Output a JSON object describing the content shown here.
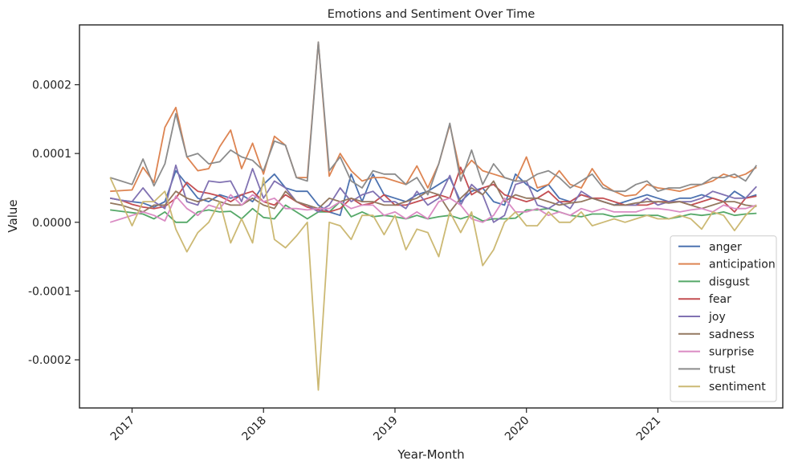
{
  "chart_data": {
    "type": "line",
    "title": "Emotions and Sentiment Over Time",
    "xlabel": "Year-Month",
    "ylabel": "Value",
    "x_tick_labels": [
      "2017",
      "2018",
      "2019",
      "2020",
      "2021"
    ],
    "y_tick_labels": [
      "-0.0002",
      "-0.0001",
      "0.0000",
      "0.0001",
      "0.0002"
    ],
    "y_ticks": [
      -0.0002,
      -0.0001,
      0,
      0.0001,
      0.0002
    ],
    "x_tick_positions": [
      2017,
      2018,
      2019,
      2020,
      2021
    ],
    "xlim": [
      2016.6,
      2021.95
    ],
    "ylim": [
      -0.00027,
      0.000287
    ],
    "grid": false,
    "legend_position": "lower-right",
    "x": [
      2016.833,
      2016.917,
      2017.0,
      2017.083,
      2017.167,
      2017.25,
      2017.333,
      2017.417,
      2017.5,
      2017.583,
      2017.667,
      2017.75,
      2017.833,
      2017.917,
      2018.0,
      2018.083,
      2018.167,
      2018.25,
      2018.333,
      2018.417,
      2018.5,
      2018.583,
      2018.667,
      2018.75,
      2018.833,
      2018.917,
      2019.0,
      2019.083,
      2019.167,
      2019.25,
      2019.333,
      2019.417,
      2019.5,
      2019.583,
      2019.667,
      2019.75,
      2019.833,
      2019.917,
      2020.0,
      2020.083,
      2020.167,
      2020.25,
      2020.333,
      2020.417,
      2020.5,
      2020.583,
      2020.667,
      2020.75,
      2020.833,
      2020.917,
      2021.0,
      2021.083,
      2021.167,
      2021.25,
      2021.333,
      2021.417,
      2021.5,
      2021.583,
      2021.667,
      2021.75
    ],
    "series": [
      {
        "name": "anger",
        "color": "#4c72b0",
        "values": [
          3.5e-05,
          3.2e-05,
          3e-05,
          2.8e-05,
          2.2e-05,
          3e-05,
          7.5e-05,
          5.5e-05,
          3.5e-05,
          3e-05,
          4e-05,
          3.5e-05,
          4e-05,
          3e-05,
          5.5e-05,
          7e-05,
          5e-05,
          4.5e-05,
          4.5e-05,
          2.5e-05,
          1.5e-05,
          1e-05,
          7e-05,
          3e-05,
          7e-05,
          4e-05,
          3.5e-05,
          3e-05,
          4e-05,
          4.5e-05,
          5.5e-05,
          6.5e-05,
          3e-05,
          4.5e-05,
          5e-05,
          3e-05,
          2.5e-05,
          7e-05,
          5.5e-05,
          4.5e-05,
          5.5e-05,
          3.5e-05,
          3e-05,
          4e-05,
          3.5e-05,
          3e-05,
          2.5e-05,
          3e-05,
          3.5e-05,
          4e-05,
          3.5e-05,
          3e-05,
          3.5e-05,
          3.5e-05,
          4e-05,
          3.5e-05,
          3e-05,
          4.5e-05,
          3.5e-05,
          4e-05
        ]
      },
      {
        "name": "anticipation",
        "color": "#dd8452",
        "values": [
          4.5e-05,
          4.6e-05,
          4.7e-05,
          8e-05,
          5.8e-05,
          0.000138,
          0.000167,
          9.5e-05,
          7.5e-05,
          7.8e-05,
          0.00011,
          0.000134,
          7.8e-05,
          0.000115,
          7e-05,
          0.000125,
          0.000112,
          6.5e-05,
          6.5e-05,
          0.000262,
          6.7e-05,
          0.0001,
          7.5e-05,
          6e-05,
          6.5e-05,
          6.5e-05,
          6e-05,
          5.5e-05,
          8.2e-05,
          5e-05,
          8.5e-05,
          0.000142,
          7e-05,
          9e-05,
          7.5e-05,
          7e-05,
          6.5e-05,
          6e-05,
          9.5e-05,
          5e-05,
          5.5e-05,
          7.5e-05,
          5.5e-05,
          5e-05,
          7.8e-05,
          5.5e-05,
          4.5e-05,
          3.8e-05,
          4e-05,
          5.5e-05,
          5e-05,
          4.8e-05,
          4.5e-05,
          5e-05,
          5.5e-05,
          6e-05,
          7e-05,
          6.5e-05,
          7e-05,
          8e-05
        ]
      },
      {
        "name": "disgust",
        "color": "#55a868",
        "values": [
          1.8e-05,
          1.6e-05,
          1.4e-05,
          1.2e-05,
          5e-06,
          1.5e-05,
          0.0,
          0.0,
          1.5e-05,
          1.8e-05,
          1.5e-05,
          1.6e-05,
          5e-06,
          2e-05,
          7e-06,
          5e-06,
          2.5e-05,
          1.5e-05,
          5e-06,
          1.5e-05,
          1.5e-05,
          3e-05,
          8e-06,
          1.5e-05,
          8e-06,
          1e-05,
          8e-06,
          5e-06,
          1e-05,
          5e-06,
          8e-06,
          1e-05,
          5e-06,
          1e-05,
          2e-06,
          5e-06,
          5e-06,
          6e-06,
          1.8e-05,
          1.8e-05,
          2e-05,
          1.5e-05,
          1e-05,
          8e-06,
          1.2e-05,
          1.2e-05,
          8e-06,
          1e-05,
          1e-05,
          1e-05,
          1e-05,
          5e-06,
          8e-06,
          1.2e-05,
          1e-05,
          1.2e-05,
          1.5e-05,
          1e-05,
          1.2e-05,
          1.3e-05
        ]
      },
      {
        "name": "fear",
        "color": "#c44e52",
        "values": [
          3.5e-05,
          3.2e-05,
          2.6e-05,
          2.2e-05,
          2e-05,
          2.3e-05,
          3.5e-05,
          5.8e-05,
          4.5e-05,
          4.2e-05,
          3.8e-05,
          3e-05,
          4e-05,
          4.5e-05,
          3e-05,
          2.5e-05,
          4e-05,
          3e-05,
          2.2e-05,
          1.8e-05,
          1.5e-05,
          2e-05,
          3.5e-05,
          2.5e-05,
          2.8e-05,
          4e-05,
          2.5e-05,
          2.5e-05,
          3e-05,
          3.5e-05,
          4e-05,
          3.5e-05,
          8e-05,
          4e-05,
          5e-05,
          5.5e-05,
          4e-05,
          3.5e-05,
          3e-05,
          3.5e-05,
          4.5e-05,
          3e-05,
          3e-05,
          4e-05,
          3.5e-05,
          3.5e-05,
          3e-05,
          2.5e-05,
          2.5e-05,
          2.5e-05,
          3e-05,
          3e-05,
          3e-05,
          2.5e-05,
          3e-05,
          3.5e-05,
          3e-05,
          1.5e-05,
          3.5e-05,
          3.8e-05
        ]
      },
      {
        "name": "joy",
        "color": "#8172b2",
        "values": [
          3.5e-05,
          3.2e-05,
          3e-05,
          5e-05,
          3e-05,
          2e-05,
          8.3e-05,
          3e-05,
          2.5e-05,
          6e-05,
          5.8e-05,
          6e-05,
          3e-05,
          7.8e-05,
          3.5e-05,
          6e-05,
          5e-05,
          3e-05,
          2.5e-05,
          1.5e-05,
          2.5e-05,
          5e-05,
          3e-05,
          4e-05,
          4.5e-05,
          3e-05,
          3e-05,
          2e-05,
          4.5e-05,
          2.5e-05,
          3.5e-05,
          6.8e-05,
          2.5e-05,
          5.5e-05,
          4e-05,
          0.0,
          1e-05,
          5.5e-05,
          6e-05,
          2.5e-05,
          2e-05,
          3e-05,
          2e-05,
          4.5e-05,
          3.5e-05,
          3e-05,
          2.5e-05,
          2.5e-05,
          2.5e-05,
          3.5e-05,
          2.5e-05,
          3e-05,
          3e-05,
          3e-05,
          3.5e-05,
          4.5e-05,
          4e-05,
          3.5e-05,
          3.5e-05,
          5.2e-05
        ]
      },
      {
        "name": "sadness",
        "color": "#937860",
        "values": [
          2.8e-05,
          2.5e-05,
          2e-05,
          1.5e-05,
          2.5e-05,
          2.5e-05,
          4.5e-05,
          3.5e-05,
          3e-05,
          3.5e-05,
          3e-05,
          2.5e-05,
          2.5e-05,
          3.5e-05,
          2.5e-05,
          2e-05,
          4.5e-05,
          3e-05,
          2.5e-05,
          2e-05,
          3.5e-05,
          3e-05,
          3.5e-05,
          3e-05,
          3e-05,
          2.5e-05,
          2.5e-05,
          3e-05,
          3.5e-05,
          4.5e-05,
          4e-05,
          1.5e-05,
          3.5e-05,
          5e-05,
          4e-05,
          6e-05,
          3e-05,
          4e-05,
          3.5e-05,
          3.5e-05,
          3e-05,
          2.5e-05,
          2.8e-05,
          3e-05,
          3.5e-05,
          3e-05,
          2.5e-05,
          2.5e-05,
          2.8e-05,
          3e-05,
          3e-05,
          2.8e-05,
          3e-05,
          2.5e-05,
          2e-05,
          2.5e-05,
          3e-05,
          3e-05,
          2.5e-05,
          2.3e-05
        ]
      },
      {
        "name": "surprise",
        "color": "#da8bc3",
        "values": [
          0.0,
          5e-06,
          1e-05,
          1.5e-05,
          1e-05,
          2e-06,
          3.8e-05,
          2e-05,
          1e-05,
          2.5e-05,
          2e-05,
          4e-05,
          2.5e-05,
          4e-05,
          3e-05,
          3.5e-05,
          2e-05,
          2e-05,
          1.8e-05,
          2e-05,
          2e-05,
          3e-05,
          2e-05,
          2.5e-05,
          2.5e-05,
          1e-05,
          1.5e-05,
          5e-06,
          1.5e-05,
          5e-06,
          3e-05,
          3.5e-05,
          2.5e-05,
          5e-06,
          0.0,
          1e-05,
          3.5e-05,
          1.5e-05,
          1.5e-05,
          2e-05,
          1e-05,
          1.5e-05,
          1e-05,
          2e-05,
          1.5e-05,
          2e-05,
          1.5e-05,
          1.5e-05,
          1.5e-05,
          2e-05,
          2e-05,
          1.8e-05,
          1.5e-05,
          1.8e-05,
          2e-05,
          1.5e-05,
          2.5e-05,
          2e-05,
          2e-05,
          2.5e-05
        ]
      },
      {
        "name": "trust",
        "color": "#8c8c8c",
        "values": [
          6.5e-05,
          6e-05,
          5.5e-05,
          9.2e-05,
          5.3e-05,
          8.5e-05,
          0.000158,
          9.5e-05,
          0.0001,
          8.5e-05,
          8.8e-05,
          0.000105,
          9.5e-05,
          9e-05,
          7.5e-05,
          0.000118,
          0.000112,
          6.5e-05,
          6e-05,
          0.000262,
          7.5e-05,
          9.5e-05,
          6e-05,
          5e-05,
          7.5e-05,
          7e-05,
          7e-05,
          5.5e-05,
          6.5e-05,
          4e-05,
          8.5e-05,
          0.000144,
          6e-05,
          0.000105,
          5.5e-05,
          8.5e-05,
          6.5e-05,
          6e-05,
          6e-05,
          7e-05,
          7.5e-05,
          6.5e-05,
          5e-05,
          6e-05,
          7e-05,
          5e-05,
          4.5e-05,
          4.5e-05,
          5.5e-05,
          6e-05,
          4.5e-05,
          5e-05,
          5e-05,
          5.5e-05,
          5.5e-05,
          6.5e-05,
          6.5e-05,
          7e-05,
          6e-05,
          8.3e-05
        ]
      },
      {
        "name": "sentiment",
        "color": "#ccb974",
        "values": [
          6.5e-05,
          3e-05,
          -5e-06,
          3e-05,
          3e-05,
          4.5e-05,
          -1e-05,
          -4.3e-05,
          -1.5e-05,
          0.0,
          3e-05,
          -3e-05,
          5e-06,
          -3e-05,
          6.5e-05,
          -2.5e-05,
          -3.7e-05,
          -2e-05,
          0.0,
          -0.000244,
          0.0,
          -5e-06,
          -2.5e-05,
          1e-05,
          1e-05,
          -1.8e-05,
          1e-05,
          -4e-05,
          -1e-05,
          -1.5e-05,
          -5e-05,
          1.5e-05,
          -1.5e-05,
          1.5e-05,
          -6.3e-05,
          -4e-05,
          0.0,
          1.5e-05,
          -5e-06,
          -5e-06,
          1.5e-05,
          0.0,
          0.0,
          1.5e-05,
          -5e-06,
          0.0,
          5e-06,
          0.0,
          5e-06,
          1e-05,
          5e-06,
          5e-06,
          1e-05,
          5e-06,
          -1e-05,
          1.5e-05,
          1e-05,
          -1.2e-05,
          1e-05,
          2.5e-05
        ]
      }
    ]
  }
}
